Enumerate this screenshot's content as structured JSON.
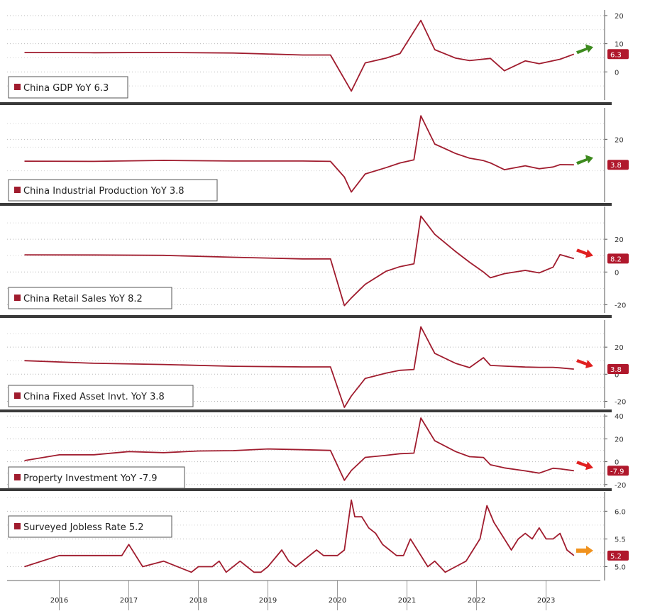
{
  "colors": {
    "line": "#a01c2e",
    "badge": "#b0182c",
    "separator": "#3a3a3a",
    "grid": "#b8b8b8",
    "arrow_up": "#3d8a1e",
    "arrow_down": "#e02020",
    "arrow_flat": "#f0921e"
  },
  "x_axis": {
    "labels": [
      "2016",
      "2017",
      "2018",
      "2019",
      "2020",
      "2021",
      "2022",
      "2023"
    ]
  },
  "chart_data": [
    {
      "type": "line",
      "title": "China GDP YoY 6.3",
      "badge": "6.3",
      "arrow": "up",
      "ylim": [
        -10,
        22
      ],
      "yticks": [
        "20",
        "10",
        "0"
      ],
      "ytick_values": [
        20,
        10,
        0
      ],
      "series": [
        {
          "x": [
            2015.5,
            2016.5,
            2017.5,
            2018.5,
            2019.5,
            2019.9,
            2020.2,
            2020.4,
            2020.7,
            2020.9,
            2021.2,
            2021.4,
            2021.7,
            2021.9,
            2022.2,
            2022.4,
            2022.7,
            2022.9,
            2023.2,
            2023.4
          ],
          "y": [
            6.9,
            6.8,
            6.9,
            6.7,
            6.0,
            6.0,
            -6.8,
            3.2,
            4.9,
            6.5,
            18.3,
            7.9,
            4.9,
            4.0,
            4.8,
            0.4,
            3.9,
            2.9,
            4.5,
            6.3
          ]
        }
      ]
    },
    {
      "type": "line",
      "title": "China Industrial Production YoY 3.8",
      "badge": "3.8",
      "arrow": "up",
      "ylim": [
        -20,
        40
      ],
      "yticks": [
        "20"
      ],
      "ytick_values": [
        20
      ],
      "series": [
        {
          "x": [
            2015.5,
            2016.5,
            2017.5,
            2018.5,
            2019.5,
            2019.9,
            2020.1,
            2020.2,
            2020.4,
            2020.7,
            2020.9,
            2021.1,
            2021.2,
            2021.4,
            2021.7,
            2021.9,
            2022.1,
            2022.2,
            2022.4,
            2022.7,
            2022.9,
            2023.1,
            2023.2,
            2023.4
          ],
          "y": [
            6.1,
            6.0,
            6.6,
            6.2,
            6.2,
            6.0,
            -4.0,
            -13.5,
            -2.0,
            2.0,
            5.0,
            7.0,
            35.0,
            17.0,
            11.0,
            8.0,
            6.5,
            5.0,
            0.7,
            3.2,
            1.3,
            2.4,
            3.9,
            3.8
          ]
        }
      ]
    },
    {
      "type": "line",
      "title": "China Retail Sales YoY 8.2",
      "badge": "8.2",
      "arrow": "down",
      "ylim": [
        -25,
        40
      ],
      "yticks": [
        "20",
        "0",
        "-20"
      ],
      "ytick_values": [
        20,
        0,
        -20
      ],
      "series": [
        {
          "x": [
            2015.5,
            2016.5,
            2017.5,
            2018.5,
            2019.5,
            2019.9,
            2020.1,
            2020.2,
            2020.4,
            2020.7,
            2020.9,
            2021.1,
            2021.2,
            2021.4,
            2021.7,
            2021.9,
            2022.1,
            2022.2,
            2022.4,
            2022.7,
            2022.9,
            2023.1,
            2023.2,
            2023.4
          ],
          "y": [
            10.5,
            10.4,
            10.2,
            9.0,
            8.0,
            8.0,
            -20.5,
            -15.8,
            -7.5,
            0.5,
            3.3,
            5.0,
            34.2,
            23.0,
            12.5,
            6.0,
            0.0,
            -3.5,
            -1.0,
            1.0,
            -0.5,
            3.0,
            10.6,
            8.2
          ]
        }
      ]
    },
    {
      "type": "line",
      "title": "China Fixed Asset Invt. YoY 3.8",
      "badge": "3.8",
      "arrow": "down",
      "ylim": [
        -25,
        40
      ],
      "yticks": [
        "20",
        "0",
        "-20"
      ],
      "ytick_values": [
        20,
        0,
        -20
      ],
      "series": [
        {
          "x": [
            2015.5,
            2016.5,
            2017.5,
            2018.5,
            2019.5,
            2019.9,
            2020.1,
            2020.2,
            2020.4,
            2020.7,
            2020.9,
            2021.1,
            2021.2,
            2021.4,
            2021.7,
            2021.9,
            2022.1,
            2022.2,
            2022.4,
            2022.7,
            2022.9,
            2023.1,
            2023.2,
            2023.4
          ],
          "y": [
            10.0,
            8.1,
            7.2,
            5.9,
            5.4,
            5.4,
            -24.5,
            -16.1,
            -3.1,
            0.8,
            2.9,
            3.5,
            35.0,
            15.4,
            8.0,
            4.9,
            12.2,
            6.5,
            6.0,
            5.3,
            5.1,
            5.1,
            4.7,
            3.8
          ]
        }
      ]
    },
    {
      "type": "line",
      "title": "Property Investment YoY -7.9",
      "badge": "-7.9",
      "arrow": "down",
      "ylim": [
        -22,
        42
      ],
      "yticks": [
        "40",
        "20",
        "0",
        "-20"
      ],
      "ytick_values": [
        40,
        20,
        0,
        -20
      ],
      "series": [
        {
          "x": [
            2015.5,
            2016.0,
            2016.5,
            2017.0,
            2017.5,
            2018.0,
            2018.5,
            2019.0,
            2019.5,
            2019.9,
            2020.1,
            2020.2,
            2020.4,
            2020.7,
            2020.9,
            2021.1,
            2021.2,
            2021.4,
            2021.7,
            2021.9,
            2022.1,
            2022.2,
            2022.4,
            2022.7,
            2022.9,
            2023.1,
            2023.2,
            2023.4
          ],
          "y": [
            1.0,
            6.0,
            6.1,
            8.9,
            7.9,
            9.4,
            9.7,
            11.2,
            10.5,
            9.9,
            -16.3,
            -7.7,
            3.8,
            5.6,
            7.0,
            7.5,
            38.3,
            18.3,
            8.9,
            4.4,
            3.7,
            -2.7,
            -5.4,
            -8.0,
            -10.0,
            -5.7,
            -6.2,
            -7.9
          ]
        }
      ]
    },
    {
      "type": "line",
      "title": "Surveyed Jobless Rate 5.2",
      "badge": "5.2",
      "arrow": "flat",
      "ylim": [
        4.75,
        6.35
      ],
      "yticks": [
        "6.0",
        "5.5",
        "5.0"
      ],
      "ytick_values": [
        6.0,
        5.5,
        5.0
      ],
      "series": [
        {
          "x": [
            2015.5,
            2016.0,
            2016.5,
            2016.9,
            2017.0,
            2017.2,
            2017.5,
            2017.9,
            2018.0,
            2018.2,
            2018.3,
            2018.4,
            2018.6,
            2018.8,
            2018.9,
            2019.0,
            2019.2,
            2019.3,
            2019.4,
            2019.6,
            2019.7,
            2019.8,
            2019.9,
            2020.0,
            2020.1,
            2020.2,
            2020.25,
            2020.35,
            2020.45,
            2020.55,
            2020.65,
            2020.75,
            2020.85,
            2020.95,
            2021.05,
            2021.15,
            2021.3,
            2021.4,
            2021.55,
            2021.7,
            2021.85,
            2021.95,
            2022.05,
            2022.15,
            2022.25,
            2022.4,
            2022.5,
            2022.6,
            2022.7,
            2022.8,
            2022.9,
            2023.0,
            2023.1,
            2023.2,
            2023.3,
            2023.4
          ],
          "y": [
            5.0,
            5.2,
            5.2,
            5.2,
            5.4,
            5.0,
            5.1,
            4.9,
            5.0,
            5.0,
            5.1,
            4.9,
            5.1,
            4.9,
            4.9,
            5.0,
            5.3,
            5.1,
            5.0,
            5.2,
            5.3,
            5.2,
            5.2,
            5.2,
            5.3,
            6.2,
            5.9,
            5.9,
            5.7,
            5.6,
            5.4,
            5.3,
            5.2,
            5.2,
            5.5,
            5.3,
            5.0,
            5.1,
            4.9,
            5.0,
            5.1,
            5.3,
            5.5,
            6.1,
            5.8,
            5.5,
            5.3,
            5.5,
            5.6,
            5.5,
            5.7,
            5.5,
            5.5,
            5.6,
            5.3,
            5.2
          ]
        }
      ]
    }
  ]
}
